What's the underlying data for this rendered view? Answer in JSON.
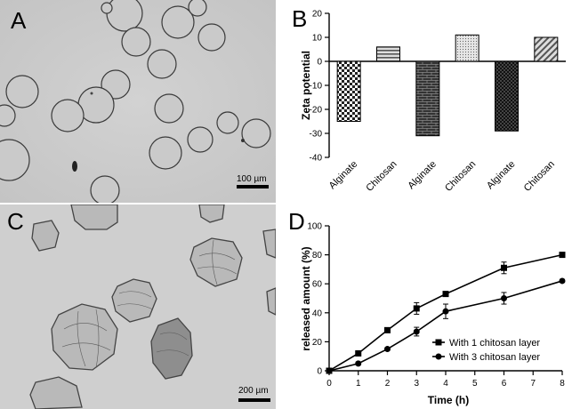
{
  "panels": {
    "a": {
      "label": "A",
      "scale_label": "100 µm"
    },
    "b": {
      "label": "B"
    },
    "c": {
      "label": "C",
      "scale_label": "200 µm"
    },
    "d": {
      "label": "D"
    }
  },
  "chart_data": [
    {
      "panel": "B",
      "type": "bar",
      "title": "",
      "xlabel": "",
      "ylabel": "Zeta potential",
      "ylim": [
        -40,
        20
      ],
      "yticks": [
        -40,
        -30,
        -20,
        -10,
        0,
        10,
        20
      ],
      "categories": [
        "Alginate",
        "Chitosan",
        "Alginate",
        "Chitosan",
        "Alginate",
        "Chitosan"
      ],
      "values": [
        -25,
        6,
        -31,
        11,
        -29,
        10
      ],
      "patterns": [
        "checker",
        "horizontal",
        "brick",
        "dots",
        "dark-checker",
        "diagonal"
      ],
      "grid": false,
      "legend": "none"
    },
    {
      "panel": "D",
      "type": "line",
      "title": "",
      "xlabel": "Time (h)",
      "ylabel": "released amount (%)",
      "xlim": [
        0,
        8
      ],
      "ylim": [
        0,
        100
      ],
      "xticks": [
        0,
        1,
        2,
        3,
        4,
        5,
        6,
        7,
        8
      ],
      "yticks": [
        0,
        20,
        40,
        60,
        80,
        100
      ],
      "grid": false,
      "legend": "bottom-right",
      "series": [
        {
          "name": "With 1 chitosan layer",
          "marker": "square",
          "x": [
            0,
            1,
            2,
            3,
            4,
            6,
            8
          ],
          "y": [
            0,
            12,
            28,
            43,
            53,
            71,
            80
          ],
          "err": [
            0,
            1,
            1,
            4,
            1,
            4,
            1
          ]
        },
        {
          "name": "With 3 chitosan layer",
          "marker": "circle",
          "x": [
            0,
            1,
            2,
            3,
            4,
            6,
            8
          ],
          "y": [
            0,
            5,
            15,
            27,
            41,
            50,
            62
          ],
          "err": [
            0,
            1,
            1,
            3,
            5,
            4,
            1
          ]
        }
      ]
    }
  ]
}
